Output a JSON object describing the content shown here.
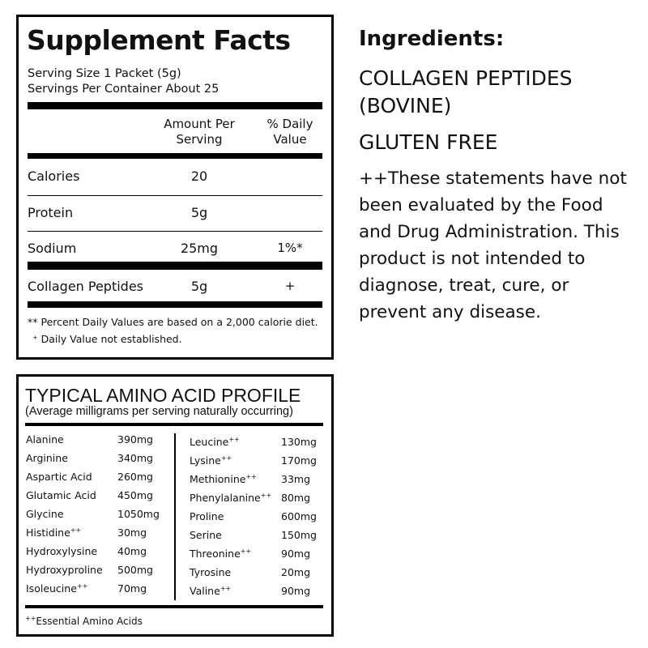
{
  "facts": {
    "title": "Supplement Facts",
    "serving_size": "Serving Size 1 Packet (5g)",
    "servings_per_container": "Servings Per Container About 25",
    "columns": [
      "Amount Per Serving",
      "% Daily Value"
    ],
    "rows": [
      [
        "Calories",
        "20"
      ],
      [
        "Protein",
        "5g"
      ],
      [
        "Sodium",
        "25mg",
        "1%*"
      ],
      [
        "Collagen Peptides",
        "5g",
        "+"
      ]
    ],
    "footnotes": [
      "** Percent Daily Values are based on a 2,000 calorie diet.",
      "⁺ Daily Value not established."
    ]
  },
  "amino": {
    "title": "TYPICAL AMINO ACID PROFILE",
    "subtitle": "(Average milligrams per serving naturally occurring)",
    "left": [
      {
        "name": "Alanine",
        "amount": "390mg"
      },
      {
        "name": "Arginine",
        "amount": "340mg"
      },
      {
        "name": "Aspartic Acid",
        "amount": "260mg"
      },
      {
        "name": "Glutamic Acid",
        "amount": "450mg"
      },
      {
        "name": "Glycine",
        "amount": "1050mg"
      },
      {
        "name": "Histidine",
        "mark": "++",
        "amount": "30mg"
      },
      {
        "name": "Hydroxylysine",
        "amount": "40mg"
      },
      {
        "name": "Hydroxyproline",
        "amount": "500mg"
      },
      {
        "name": "Isoleucine",
        "mark": "++",
        "amount": "70mg"
      }
    ],
    "right": [
      {
        "name": "Leucine",
        "mark": "++",
        "amount": "130mg"
      },
      {
        "name": "Lysine",
        "mark": "++",
        "amount": "170mg"
      },
      {
        "name": "Methionine",
        "mark": "++",
        "amount": "33mg"
      },
      {
        "name": "Phenylalanine",
        "mark": "++",
        "amount": "80mg"
      },
      {
        "name": "Proline",
        "amount": "600mg"
      },
      {
        "name": "Serine",
        "amount": "150mg"
      },
      {
        "name": "Threonine",
        "mark": "++",
        "amount": "90mg"
      },
      {
        "name": "Tyrosine",
        "amount": "20mg"
      },
      {
        "name": "Valine",
        "mark": "++",
        "amount": "90mg"
      }
    ],
    "footnote": {
      "mark": "++",
      "text": "Essential Amino Acids"
    }
  },
  "ingredients": {
    "heading": "Ingredients:",
    "items": [
      "COLLAGEN PEPTIDES (BOVINE)",
      "GLUTEN FREE"
    ],
    "disclaimer": "++These statements have not been evaluated by the Food and Drug Administration. This product is not intended to diagnose, treat, cure, or prevent any disease."
  }
}
